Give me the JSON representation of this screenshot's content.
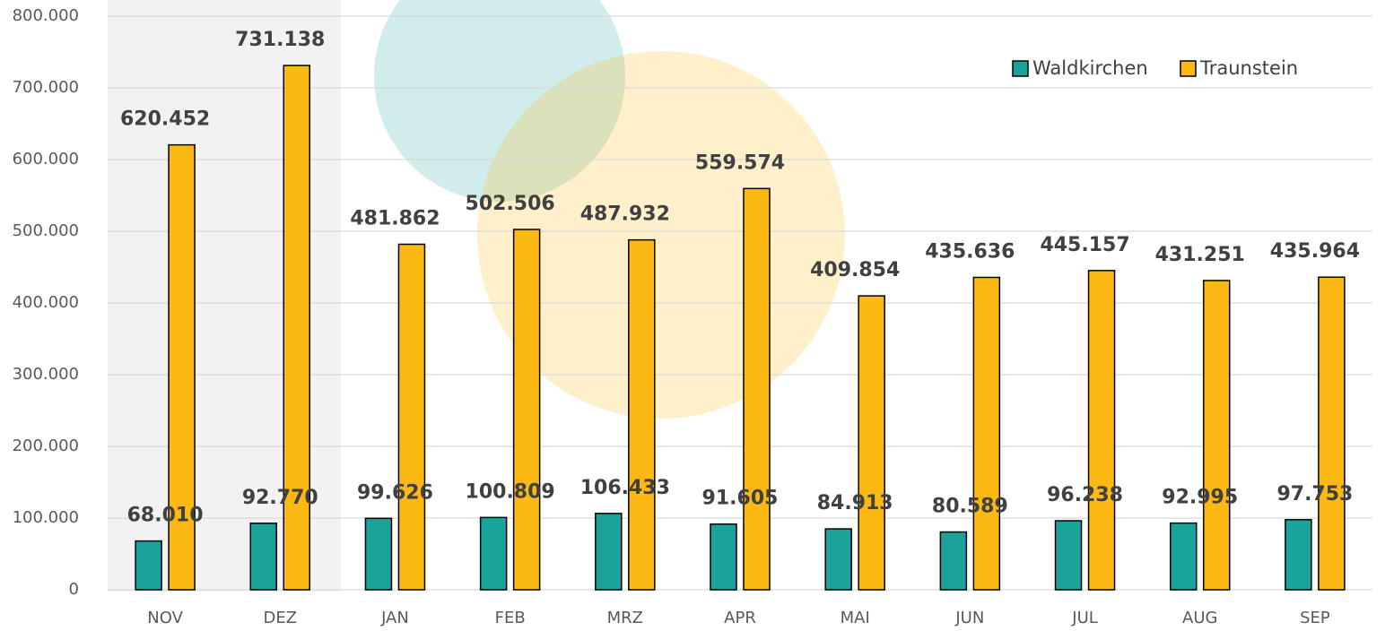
{
  "chart_data": {
    "type": "bar",
    "categories": [
      "NOV",
      "DEZ",
      "JAN",
      "FEB",
      "MRZ",
      "APR",
      "MAI",
      "JUN",
      "JUL",
      "AUG",
      "SEP"
    ],
    "series": [
      {
        "name": "Waldkirchen",
        "color": "#1aa39a",
        "values": [
          68010,
          92770,
          99626,
          100809,
          106433,
          91605,
          84913,
          80589,
          96238,
          92995,
          97753
        ],
        "value_labels": [
          "68.010",
          "92.770",
          "99.626",
          "100.809",
          "106.433",
          "91.605",
          "84.913",
          "80.589",
          "96.238",
          "92.995",
          "97.753"
        ]
      },
      {
        "name": "Traunstein",
        "color": "#fdb913",
        "values": [
          620452,
          731138,
          481862,
          502506,
          487932,
          559574,
          409854,
          435636,
          445157,
          431251,
          435964
        ],
        "value_labels": [
          "620.452",
          "731.138",
          "481.862",
          "502.506",
          "487.932",
          "559.574",
          "409.854",
          "435.636",
          "445.157",
          "431.251",
          "435.964"
        ]
      }
    ],
    "ylim": [
      0,
      800000
    ],
    "yticks": [
      0,
      {
        "value": 100000,
        "label": "100.000"
      },
      {
        "value": 200000,
        "label": "200.000"
      },
      {
        "value": 300000,
        "label": "300.000"
      },
      {
        "value": 400000,
        "label": "400.000"
      },
      {
        "value": 500000,
        "label": "500.000"
      },
      {
        "value": 600000,
        "label": "600.000"
      },
      {
        "value": 700000,
        "label": "700.000"
      },
      {
        "value": 800000,
        "label": "800.000"
      }
    ],
    "grid": true,
    "legend": "upper right"
  }
}
